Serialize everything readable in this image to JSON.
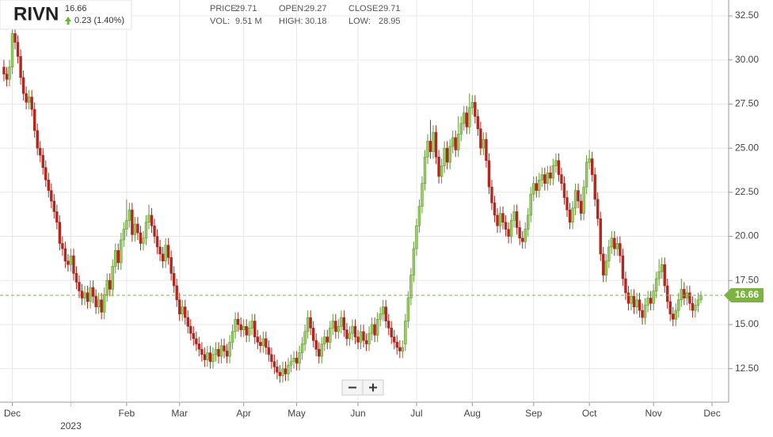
{
  "chart_data": {
    "type": "candlestick",
    "symbol": "RIVN",
    "last_price": 16.66,
    "change": "0.23 (1.40%)",
    "stats": [
      {
        "label": "PRICE:",
        "value": 29.71
      },
      {
        "label": "OPEN:",
        "value": 29.27
      },
      {
        "label": "CLOSE:",
        "value": 29.71
      },
      {
        "label": "VOL:",
        "value": "9.51 M"
      },
      {
        "label": "HIGH:",
        "value": 30.18
      },
      {
        "label": "LOW:",
        "value": 28.95
      }
    ],
    "up_color": "#9ccc65",
    "up_edge": "#5d9b2e",
    "down_color": "#b3261e",
    "last_color": "#7cb342",
    "grid": true,
    "ylim": [
      10.6,
      33.4
    ],
    "yticks": [
      {
        "value": 12.5,
        "label": "12.50"
      },
      {
        "value": 15,
        "label": "15.00"
      },
      {
        "value": 17.5,
        "label": "17.50"
      },
      {
        "value": 20,
        "label": "20.00"
      },
      {
        "value": 22.5,
        "label": "22.50"
      },
      {
        "value": 25,
        "label": "25.00"
      },
      {
        "value": 27.5,
        "label": "27.50"
      },
      {
        "value": 30,
        "label": "30.00"
      },
      {
        "value": 32.5,
        "label": "32.50"
      }
    ],
    "categories": [
      null,
      null,
      null,
      "Dec",
      null,
      null,
      null,
      null,
      null,
      null,
      null,
      null,
      null,
      null,
      null,
      null,
      null,
      null,
      null,
      null,
      null,
      null,
      null,
      null,
      "2023",
      null,
      null,
      null,
      null,
      null,
      null,
      null,
      null,
      null,
      null,
      null,
      null,
      null,
      null,
      null,
      null,
      null,
      null,
      null,
      "Feb",
      null,
      null,
      null,
      null,
      null,
      null,
      null,
      null,
      null,
      null,
      null,
      null,
      null,
      null,
      null,
      null,
      null,
      null,
      "Mar",
      null,
      null,
      null,
      null,
      null,
      null,
      null,
      null,
      null,
      null,
      null,
      null,
      null,
      null,
      null,
      null,
      null,
      null,
      null,
      null,
      null,
      null,
      "Apr",
      null,
      null,
      null,
      null,
      null,
      null,
      null,
      null,
      null,
      null,
      null,
      null,
      null,
      null,
      null,
      null,
      null,
      null,
      "May",
      null,
      null,
      null,
      null,
      null,
      null,
      null,
      null,
      null,
      null,
      null,
      null,
      null,
      null,
      null,
      null,
      null,
      null,
      null,
      null,
      null,
      "Jun",
      null,
      null,
      null,
      null,
      null,
      null,
      null,
      null,
      null,
      null,
      null,
      null,
      null,
      null,
      null,
      null,
      null,
      null,
      null,
      null,
      "Jul",
      null,
      null,
      null,
      null,
      null,
      null,
      null,
      null,
      null,
      null,
      null,
      null,
      null,
      null,
      null,
      null,
      null,
      null,
      null,
      "Aug",
      null,
      null,
      null,
      null,
      null,
      null,
      null,
      null,
      null,
      null,
      null,
      null,
      null,
      null,
      null,
      null,
      null,
      null,
      null,
      null,
      null,
      "Sep",
      null,
      null,
      null,
      null,
      null,
      null,
      null,
      null,
      null,
      null,
      null,
      null,
      null,
      null,
      null,
      null,
      null,
      null,
      null,
      "Oct",
      null,
      null,
      null,
      null,
      null,
      null,
      null,
      null,
      null,
      null,
      null,
      null,
      null,
      null,
      null,
      null,
      null,
      null,
      null,
      null,
      null,
      null,
      "Nov",
      null,
      null,
      null,
      null,
      null,
      null,
      null,
      null,
      null,
      null,
      null,
      null,
      null,
      null,
      null,
      null,
      null,
      null,
      null,
      null,
      "Dec"
    ],
    "open": [
      29.6,
      29.2,
      28.9,
      29.6,
      31.5,
      31.0,
      30.2,
      29.0,
      28.1,
      27.6,
      27.9,
      27.2,
      26.0,
      25.0,
      24.6,
      23.9,
      23.2,
      22.6,
      22.0,
      21.4,
      20.8,
      19.6,
      19.3,
      18.6,
      18.4,
      18.9,
      17.9,
      17.4,
      16.9,
      16.5,
      16.8,
      16.3,
      17.1,
      16.6,
      16.0,
      16.4,
      15.7,
      16.7,
      17.5,
      17.0,
      18.3,
      19.2,
      18.5,
      19.8,
      20.4,
      20.9,
      21.5,
      20.1,
      20.7,
      20.2,
      19.6,
      19.9,
      20.8,
      21.2,
      20.6,
      20.0,
      19.4,
      19.0,
      18.6,
      19.5,
      18.8,
      17.9,
      17.2,
      16.4,
      15.6,
      16.0,
      15.4,
      14.9,
      14.5,
      14.2,
      13.9,
      13.6,
      13.3,
      13.0,
      13.4,
      12.9,
      13.3,
      13.6,
      13.2,
      13.8,
      13.5,
      13.2,
      14.0,
      14.6,
      15.3,
      15.0,
      14.7,
      14.9,
      14.4,
      14.8,
      15.2,
      14.3,
      14.0,
      13.8,
      14.2,
      13.7,
      13.3,
      12.9,
      12.6,
      12.3,
      12.1,
      12.5,
      12.2,
      12.7,
      12.9,
      13.1,
      12.8,
      13.4,
      13.9,
      14.6,
      15.4,
      14.8,
      14.1,
      13.6,
      13.2,
      13.9,
      14.3,
      14.0,
      14.8,
      15.2,
      14.6,
      14.9,
      15.4,
      14.7,
      14.2,
      14.5,
      14.9,
      14.3,
      14.0,
      14.6,
      14.1,
      13.9,
      14.5,
      15.0,
      14.4,
      15.3,
      15.6,
      16.0,
      15.2,
      14.8,
      14.3,
      14.0,
      13.7,
      13.5,
      13.9,
      15.2,
      16.5,
      17.8,
      19.3,
      20.6,
      21.7,
      23.0,
      24.5,
      25.4,
      24.8,
      25.9,
      24.5,
      23.4,
      24.0,
      25.0,
      24.2,
      25.1,
      25.6,
      24.9,
      25.8,
      26.4,
      27.0,
      26.2,
      27.3,
      27.6,
      26.8,
      26.1,
      25.0,
      25.5,
      24.3,
      22.8,
      21.9,
      21.2,
      20.6,
      21.3,
      20.8,
      20.4,
      20.0,
      20.9,
      21.4,
      20.5,
      19.9,
      19.7,
      20.4,
      21.2,
      22.4,
      23.0,
      22.6,
      23.2,
      23.5,
      23.0,
      23.6,
      23.3,
      24.0,
      24.3,
      23.5,
      23.0,
      22.2,
      21.5,
      20.8,
      21.6,
      22.6,
      22.0,
      21.3,
      22.8,
      24.2,
      24.4,
      23.5,
      22.1,
      21.0,
      19.0,
      17.8,
      18.6,
      19.4,
      19.9,
      19.3,
      19.6,
      18.9,
      17.6,
      16.8,
      16.2,
      16.6,
      16.0,
      16.4,
      15.8,
      15.4,
      16.1,
      16.5,
      16.2,
      16.9,
      17.6,
      18.0,
      18.4,
      17.2,
      16.3,
      15.6,
      15.3,
      15.8,
      16.4,
      17.0,
      16.5,
      16.8,
      16.2,
      15.8,
      16.1,
      16.4,
      null,
      null,
      null,
      null
    ],
    "high": [
      30.0,
      29.6,
      30.0,
      31.9,
      31.9,
      31.4,
      30.6,
      29.4,
      28.5,
      28.3,
      28.3,
      27.6,
      26.4,
      25.4,
      25.0,
      24.3,
      23.6,
      23.0,
      22.4,
      21.8,
      21.2,
      20.0,
      19.7,
      19.0,
      19.3,
      19.3,
      18.3,
      17.8,
      17.3,
      17.2,
      17.2,
      17.5,
      17.5,
      17.0,
      16.8,
      16.8,
      17.1,
      17.9,
      17.9,
      18.7,
      19.6,
      19.6,
      20.2,
      20.8,
      22.1,
      21.9,
      21.9,
      21.1,
      21.1,
      20.6,
      20.3,
      21.2,
      21.8,
      21.6,
      21.0,
      20.4,
      19.8,
      19.4,
      19.9,
      19.9,
      19.2,
      18.3,
      17.6,
      16.8,
      16.4,
      16.4,
      15.8,
      15.3,
      14.9,
      14.6,
      14.3,
      14.0,
      13.7,
      13.8,
      13.8,
      13.7,
      14.0,
      14.0,
      14.2,
      14.2,
      13.9,
      14.4,
      15.0,
      15.7,
      15.7,
      15.4,
      15.3,
      15.3,
      15.2,
      15.6,
      15.6,
      14.7,
      14.4,
      14.6,
      14.6,
      14.1,
      13.7,
      13.3,
      13.0,
      12.7,
      12.9,
      12.9,
      13.1,
      13.3,
      13.5,
      13.5,
      13.8,
      14.3,
      15.0,
      15.8,
      15.8,
      15.2,
      14.5,
      14.0,
      14.3,
      14.7,
      14.7,
      15.2,
      15.6,
      15.6,
      15.3,
      15.8,
      15.8,
      15.1,
      14.9,
      15.3,
      15.3,
      14.7,
      15.0,
      15.0,
      14.5,
      14.9,
      15.4,
      15.4,
      15.7,
      16.0,
      16.4,
      16.4,
      15.6,
      15.2,
      14.7,
      14.4,
      14.1,
      14.1,
      15.6,
      16.9,
      18.2,
      19.7,
      21.0,
      22.1,
      23.4,
      24.9,
      25.8,
      26.6,
      26.3,
      26.3,
      24.9,
      24.4,
      25.4,
      25.4,
      25.5,
      26.0,
      26.0,
      26.8,
      26.8,
      27.4,
      27.4,
      28.1,
      28.0,
      28.0,
      27.2,
      26.5,
      25.9,
      25.9,
      24.7,
      23.2,
      22.3,
      21.6,
      21.7,
      21.7,
      21.2,
      20.8,
      21.3,
      21.8,
      21.8,
      20.9,
      20.3,
      20.8,
      21.6,
      22.8,
      23.4,
      23.4,
      23.6,
      23.9,
      23.9,
      24.0,
      24.0,
      24.4,
      24.7,
      24.7,
      23.9,
      23.4,
      22.6,
      21.9,
      22.0,
      23.0,
      23.0,
      22.4,
      23.2,
      24.6,
      24.9,
      24.8,
      23.9,
      22.5,
      21.4,
      19.4,
      19.0,
      19.8,
      20.3,
      20.3,
      20.0,
      20.0,
      19.3,
      18.0,
      17.2,
      17.0,
      17.0,
      16.8,
      16.8,
      16.2,
      16.5,
      16.9,
      16.9,
      17.3,
      18.0,
      18.7,
      18.8,
      18.8,
      17.6,
      16.7,
      16.0,
      16.2,
      16.8,
      17.6,
      17.4,
      17.2,
      17.2,
      16.6,
      16.5,
      16.8,
      16.9,
      null,
      null,
      null,
      null
    ],
    "low": [
      28.8,
      28.5,
      28.5,
      29.2,
      30.6,
      29.8,
      28.6,
      27.7,
      27.2,
      27.2,
      26.8,
      25.6,
      24.6,
      24.2,
      23.5,
      22.8,
      22.2,
      21.6,
      21.0,
      20.4,
      19.2,
      18.9,
      18.2,
      18.0,
      18.0,
      17.5,
      17.0,
      16.5,
      16.1,
      16.1,
      15.9,
      15.9,
      16.2,
      15.6,
      15.6,
      15.3,
      15.3,
      16.3,
      16.6,
      16.6,
      17.9,
      18.1,
      18.1,
      19.4,
      20.0,
      20.5,
      19.7,
      19.7,
      19.8,
      19.2,
      19.2,
      19.5,
      20.4,
      20.2,
      19.6,
      19.0,
      18.6,
      18.2,
      18.2,
      18.4,
      17.5,
      16.8,
      16.0,
      15.2,
      15.2,
      15.0,
      14.5,
      14.1,
      13.8,
      13.5,
      13.2,
      12.9,
      12.6,
      12.6,
      12.5,
      12.5,
      12.9,
      12.8,
      12.8,
      13.1,
      12.8,
      12.8,
      13.6,
      14.2,
      14.6,
      14.3,
      14.3,
      14.0,
      14.0,
      14.4,
      13.9,
      13.6,
      13.4,
      13.4,
      13.3,
      12.9,
      12.5,
      12.2,
      11.9,
      11.7,
      11.7,
      11.8,
      11.8,
      12.3,
      12.5,
      12.4,
      12.4,
      13.0,
      13.5,
      14.2,
      14.4,
      13.7,
      13.2,
      12.8,
      12.8,
      13.5,
      13.6,
      13.6,
      14.4,
      14.2,
      14.2,
      14.5,
      14.3,
      13.8,
      13.8,
      14.1,
      13.9,
      13.6,
      13.6,
      13.7,
      13.5,
      13.5,
      14.1,
      14.0,
      14.0,
      14.9,
      15.2,
      14.8,
      14.4,
      13.9,
      13.6,
      13.3,
      13.1,
      13.1,
      13.5,
      14.8,
      16.1,
      17.4,
      18.9,
      20.2,
      21.3,
      22.6,
      24.1,
      24.4,
      24.4,
      24.1,
      23.0,
      23.0,
      23.6,
      23.8,
      23.8,
      24.7,
      24.5,
      24.5,
      25.4,
      26.0,
      25.8,
      25.8,
      26.9,
      26.4,
      25.7,
      24.6,
      24.6,
      23.9,
      22.4,
      21.5,
      20.8,
      20.2,
      20.2,
      20.4,
      20.0,
      19.6,
      19.6,
      20.5,
      20.1,
      19.5,
      19.3,
      19.3,
      20.0,
      20.8,
      22.0,
      22.2,
      22.2,
      22.8,
      22.6,
      22.6,
      22.9,
      22.9,
      23.6,
      23.1,
      22.6,
      21.8,
      21.1,
      20.4,
      20.4,
      21.2,
      21.6,
      20.9,
      20.9,
      22.4,
      23.8,
      23.1,
      21.7,
      20.6,
      18.6,
      17.4,
      17.4,
      18.2,
      19.0,
      18.9,
      18.9,
      18.5,
      17.2,
      16.4,
      15.8,
      15.8,
      15.6,
      15.6,
      15.4,
      15.0,
      15.0,
      15.7,
      15.8,
      15.8,
      16.5,
      17.2,
      17.6,
      16.8,
      15.9,
      15.2,
      14.9,
      14.9,
      15.4,
      16.0,
      16.1,
      16.1,
      15.8,
      15.4,
      15.4,
      15.7,
      16.2,
      null,
      null,
      null,
      null
    ],
    "close": [
      29.2,
      28.9,
      29.6,
      31.5,
      31.0,
      30.2,
      29.0,
      28.1,
      27.6,
      27.9,
      27.2,
      26.0,
      25.0,
      24.6,
      23.9,
      23.2,
      22.6,
      22.0,
      21.4,
      20.8,
      19.6,
      19.3,
      18.6,
      18.4,
      18.9,
      17.9,
      17.4,
      16.9,
      16.5,
      16.8,
      16.3,
      17.1,
      16.6,
      16.0,
      16.4,
      15.7,
      16.7,
      17.5,
      17.0,
      18.3,
      19.2,
      18.5,
      19.8,
      20.4,
      20.9,
      21.5,
      20.1,
      20.7,
      20.2,
      19.6,
      19.9,
      20.8,
      21.2,
      20.6,
      20.0,
      19.4,
      19.0,
      18.6,
      19.5,
      18.8,
      17.9,
      17.2,
      16.4,
      15.6,
      16.0,
      15.4,
      14.9,
      14.5,
      14.2,
      13.9,
      13.6,
      13.3,
      13.0,
      13.4,
      12.9,
      13.3,
      13.6,
      13.2,
      13.8,
      13.5,
      13.2,
      14.0,
      14.6,
      15.3,
      15.0,
      14.7,
      14.9,
      14.4,
      14.8,
      15.2,
      14.3,
      14.0,
      13.8,
      14.2,
      13.7,
      13.3,
      12.9,
      12.6,
      12.3,
      12.1,
      12.5,
      12.2,
      12.7,
      12.9,
      13.1,
      12.8,
      13.4,
      13.9,
      14.6,
      15.4,
      14.8,
      14.1,
      13.6,
      13.2,
      13.9,
      14.3,
      14.0,
      14.8,
      15.2,
      14.6,
      14.9,
      15.4,
      14.7,
      14.2,
      14.5,
      14.9,
      14.3,
      14.0,
      14.6,
      14.1,
      13.9,
      14.5,
      15.0,
      14.4,
      15.3,
      15.6,
      16.0,
      15.2,
      14.8,
      14.3,
      14.0,
      13.7,
      13.5,
      13.7,
      15.2,
      16.5,
      17.8,
      19.3,
      20.6,
      21.7,
      23.0,
      24.5,
      25.4,
      24.8,
      25.9,
      24.5,
      23.4,
      24.0,
      25.0,
      24.2,
      25.1,
      25.6,
      24.9,
      25.8,
      26.4,
      27.0,
      26.2,
      27.3,
      27.6,
      26.8,
      26.1,
      25.0,
      25.5,
      24.3,
      22.8,
      21.9,
      21.2,
      20.6,
      21.3,
      20.8,
      20.4,
      20.0,
      20.9,
      21.4,
      20.5,
      19.9,
      19.7,
      20.4,
      21.2,
      22.4,
      23.0,
      22.6,
      23.2,
      23.5,
      23.0,
      23.6,
      23.3,
      24.0,
      24.3,
      23.5,
      23.0,
      22.2,
      21.5,
      20.8,
      21.6,
      22.6,
      22.0,
      21.3,
      22.8,
      24.2,
      24.4,
      23.5,
      22.1,
      21.0,
      19.0,
      17.8,
      18.6,
      19.4,
      19.9,
      19.3,
      19.6,
      18.9,
      17.6,
      16.8,
      16.2,
      16.6,
      16.0,
      16.4,
      15.8,
      15.4,
      16.1,
      16.5,
      16.2,
      16.9,
      17.6,
      18.0,
      18.4,
      17.2,
      16.3,
      15.6,
      15.3,
      15.8,
      16.4,
      17.0,
      16.5,
      16.8,
      16.2,
      15.8,
      16.1,
      16.4,
      16.66,
      null,
      null,
      null,
      null
    ]
  }
}
